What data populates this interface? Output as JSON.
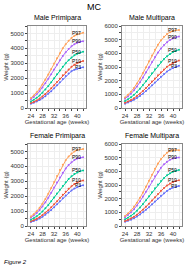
{
  "title": "MC",
  "annotations": [
    "Figure 2"
  ],
  "chart_data": [
    {
      "type": "line",
      "title": "Male Primipara",
      "xlabel": "Gestational age (weeks)",
      "ylabel": "Weight (g)",
      "x": [
        24,
        25,
        26,
        27,
        28,
        29,
        30,
        31,
        32,
        33,
        34,
        35,
        36,
        37,
        38,
        39,
        40,
        41,
        42
      ],
      "xlim": [
        23,
        43
      ],
      "xticks": [
        24,
        {
          "value": 26,
          "label": ""
        },
        28,
        {
          "value": 30,
          "label": ""
        },
        32,
        {
          "value": 34,
          "label": ""
        },
        36,
        {
          "value": 38,
          "label": ""
        },
        40,
        {
          "value": 42,
          "label": ""
        }
      ],
      "ylim": [
        0,
        5500
      ],
      "yticks": [
        0,
        {
          "value": 500,
          "label": ""
        },
        1000,
        {
          "value": 1500,
          "label": ""
        },
        2000,
        {
          "value": 2500,
          "label": ""
        },
        3000,
        {
          "value": 3500,
          "label": ""
        },
        4000,
        {
          "value": 4500,
          "label": ""
        },
        5000,
        {
          "value": 5500,
          "label": ""
        }
      ],
      "grid": true,
      "marker": "circle",
      "series": [
        {
          "name": "P3",
          "values": [
            280,
            350,
            430,
            530,
            650,
            790,
            950,
            1130,
            1320,
            1520,
            1730,
            1940,
            2140,
            2320,
            2470,
            2570,
            2640,
            2690,
            2730
          ]
        },
        {
          "name": "P10",
          "values": [
            330,
            410,
            510,
            630,
            775,
            940,
            1120,
            1320,
            1530,
            1750,
            1970,
            2190,
            2400,
            2590,
            2760,
            2900,
            3010,
            3090,
            3150
          ]
        },
        {
          "name": "P50",
          "values": [
            440,
            550,
            680,
            840,
            1030,
            1245,
            1480,
            1730,
            1990,
            2260,
            2520,
            2770,
            3000,
            3210,
            3390,
            3530,
            3640,
            3720,
            3780
          ]
        },
        {
          "name": "P90",
          "values": [
            590,
            740,
            920,
            1130,
            1380,
            1660,
            1960,
            2270,
            2590,
            2900,
            3210,
            3490,
            3740,
            3960,
            4140,
            4280,
            4380,
            4440,
            4480
          ]
        },
        {
          "name": "P97",
          "values": [
            670,
            840,
            1050,
            1290,
            1580,
            1900,
            2250,
            2610,
            2980,
            3340,
            3680,
            4000,
            4280,
            4510,
            4700,
            4840,
            4940,
            5000,
            5040
          ]
        }
      ]
    },
    {
      "type": "line",
      "title": "Male Multipara",
      "xlabel": "Gestational age (weeks)",
      "ylabel": "Weight (g)",
      "x": [
        24,
        25,
        26,
        27,
        28,
        29,
        30,
        31,
        32,
        33,
        34,
        35,
        36,
        37,
        38,
        39,
        40,
        41,
        42
      ],
      "xlim": [
        23,
        43
      ],
      "xticks": [
        24,
        {
          "value": 26,
          "label": ""
        },
        28,
        {
          "value": 30,
          "label": ""
        },
        32,
        {
          "value": 34,
          "label": ""
        },
        36,
        {
          "value": 38,
          "label": ""
        },
        40,
        {
          "value": 42,
          "label": ""
        }
      ],
      "ylim": [
        0,
        6000
      ],
      "yticks": [
        0,
        {
          "value": 500,
          "label": ""
        },
        1000,
        {
          "value": 1500,
          "label": ""
        },
        2000,
        {
          "value": 2500,
          "label": ""
        },
        3000,
        {
          "value": 3500,
          "label": ""
        },
        4000,
        {
          "value": 4500,
          "label": ""
        },
        5000,
        {
          "value": 5500,
          "label": ""
        },
        6000
      ],
      "grid": true,
      "marker": "circle",
      "series": [
        {
          "name": "P3",
          "values": [
            320,
            400,
            490,
            600,
            730,
            880,
            1050,
            1240,
            1445,
            1660,
            1875,
            2090,
            2295,
            2490,
            2665,
            2810,
            2930,
            3020,
            3090
          ]
        },
        {
          "name": "P10",
          "values": [
            380,
            470,
            580,
            710,
            870,
            1050,
            1250,
            1465,
            1695,
            1930,
            2165,
            2395,
            2615,
            2820,
            3010,
            3160,
            3290,
            3390,
            3470
          ]
        },
        {
          "name": "P50",
          "values": [
            510,
            635,
            785,
            965,
            1175,
            1415,
            1680,
            1960,
            2250,
            2545,
            2835,
            3110,
            3360,
            3590,
            3790,
            3960,
            4090,
            4190,
            4270
          ]
        },
        {
          "name": "P90",
          "values": [
            680,
            850,
            1050,
            1290,
            1570,
            1890,
            2240,
            2610,
            2990,
            3370,
            3730,
            4060,
            4360,
            4610,
            4820,
            4980,
            5100,
            5180,
            5230
          ]
        },
        {
          "name": "P97",
          "values": [
            770,
            965,
            1195,
            1470,
            1790,
            2155,
            2555,
            2980,
            3415,
            3845,
            4260,
            4630,
            4950,
            5210,
            5410,
            5550,
            5640,
            5690,
            5710
          ]
        }
      ]
    },
    {
      "type": "line",
      "title": "Female Primipara",
      "xlabel": "Gestational age (weeks)",
      "ylabel": "Weight (g)",
      "x": [
        24,
        25,
        26,
        27,
        28,
        29,
        30,
        31,
        32,
        33,
        34,
        35,
        36,
        37,
        38,
        39,
        40,
        41,
        42
      ],
      "xlim": [
        23,
        43
      ],
      "xticks": [
        24,
        {
          "value": 26,
          "label": ""
        },
        28,
        {
          "value": 30,
          "label": ""
        },
        32,
        {
          "value": 34,
          "label": ""
        },
        36,
        {
          "value": 38,
          "label": ""
        },
        40,
        {
          "value": 42,
          "label": ""
        }
      ],
      "ylim": [
        0,
        5500
      ],
      "yticks": [
        0,
        {
          "value": 500,
          "label": ""
        },
        1000,
        {
          "value": 1500,
          "label": ""
        },
        2000,
        {
          "value": 2500,
          "label": ""
        },
        3000,
        {
          "value": 3500,
          "label": ""
        },
        4000,
        {
          "value": 4500,
          "label": ""
        },
        5000,
        {
          "value": 5500,
          "label": ""
        }
      ],
      "grid": true,
      "marker": "circle",
      "series": [
        {
          "name": "P3",
          "values": [
            265,
            330,
            410,
            505,
            620,
            755,
            910,
            1080,
            1265,
            1455,
            1655,
            1855,
            2050,
            2230,
            2385,
            2510,
            2610,
            2680,
            2730
          ]
        },
        {
          "name": "P10",
          "values": [
            315,
            390,
            485,
            595,
            730,
            885,
            1060,
            1250,
            1455,
            1665,
            1880,
            2095,
            2305,
            2500,
            2670,
            2810,
            2920,
            3000,
            3060
          ]
        },
        {
          "name": "P50",
          "values": [
            420,
            525,
            650,
            800,
            980,
            1185,
            1415,
            1660,
            1915,
            2175,
            2435,
            2690,
            2930,
            3145,
            3330,
            3480,
            3590,
            3670,
            3730
          ]
        },
        {
          "name": "P90",
          "values": [
            560,
            700,
            870,
            1075,
            1315,
            1590,
            1900,
            2230,
            2575,
            2920,
            3260,
            3575,
            3855,
            4090,
            4280,
            4420,
            4520,
            4580,
            4610
          ]
        },
        {
          "name": "P97",
          "values": [
            635,
            795,
            990,
            1225,
            1500,
            1815,
            2170,
            2555,
            2955,
            3360,
            3750,
            4105,
            4410,
            4660,
            4860,
            5000,
            5090,
            5140,
            5160
          ]
        }
      ]
    },
    {
      "type": "line",
      "title": "Female Multipara",
      "xlabel": "Gestational age (weeks)",
      "ylabel": "Weight (g)",
      "x": [
        24,
        25,
        26,
        27,
        28,
        29,
        30,
        31,
        32,
        33,
        34,
        35,
        36,
        37,
        38,
        39,
        40,
        41,
        42
      ],
      "xlim": [
        23,
        43
      ],
      "xticks": [
        24,
        {
          "value": 26,
          "label": ""
        },
        28,
        {
          "value": 30,
          "label": ""
        },
        32,
        {
          "value": 34,
          "label": ""
        },
        36,
        {
          "value": 38,
          "label": ""
        },
        40,
        {
          "value": 42,
          "label": ""
        }
      ],
      "ylim": [
        0,
        6000
      ],
      "yticks": [
        0,
        {
          "value": 500,
          "label": ""
        },
        1000,
        {
          "value": 1500,
          "label": ""
        },
        2000,
        {
          "value": 2500,
          "label": ""
        },
        3000,
        {
          "value": 3500,
          "label": ""
        },
        4000,
        {
          "value": 4500,
          "label": ""
        },
        5000,
        {
          "value": 5500,
          "label": ""
        },
        6000
      ],
      "grid": true,
      "marker": "circle",
      "series": [
        {
          "name": "P3",
          "values": [
            305,
            380,
            465,
            570,
            695,
            840,
            1005,
            1185,
            1380,
            1585,
            1795,
            2010,
            2215,
            2405,
            2570,
            2705,
            2810,
            2880,
            2930
          ]
        },
        {
          "name": "P10",
          "values": [
            360,
            448,
            552,
            678,
            828,
            1002,
            1198,
            1410,
            1635,
            1870,
            2110,
            2348,
            2572,
            2778,
            2958,
            3103,
            3213,
            3290,
            3343
          ]
        },
        {
          "name": "P50",
          "values": [
            485,
            605,
            748,
            920,
            1122,
            1355,
            1615,
            1890,
            2180,
            2470,
            2758,
            3035,
            3290,
            3518,
            3710,
            3862,
            3972,
            4050,
            4105
          ]
        },
        {
          "name": "P90",
          "values": [
            648,
            810,
            1002,
            1232,
            1502,
            1810,
            2150,
            2515,
            2892,
            3270,
            3635,
            3970,
            4265,
            4510,
            4705,
            4848,
            4940,
            4993,
            5015
          ]
        },
        {
          "name": "P97",
          "values": [
            735,
            920,
            1140,
            1400,
            1708,
            2060,
            2455,
            2875,
            3315,
            3755,
            4180,
            4565,
            4895,
            5160,
            5358,
            5490,
            5558,
            5570,
            5545
          ]
        }
      ]
    }
  ]
}
